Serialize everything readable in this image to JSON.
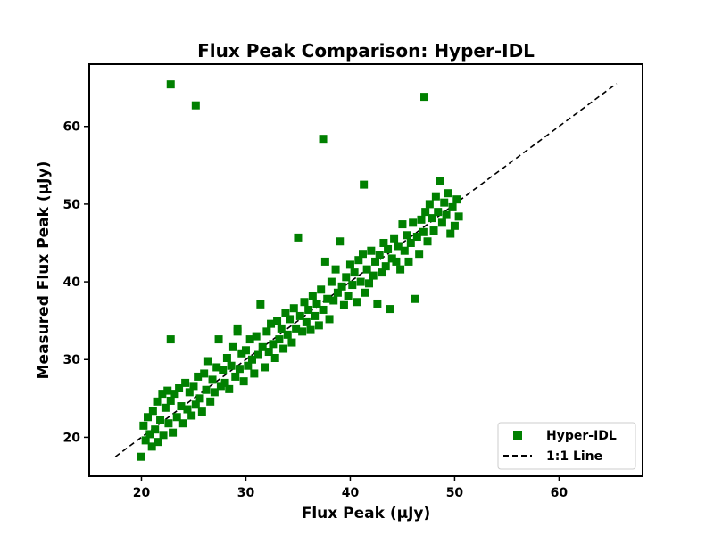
{
  "chart_data": {
    "type": "scatter",
    "title": "Flux Peak Comparison: Hyper-IDL",
    "xlabel": "Flux Peak (μJy)",
    "ylabel": "Measured Flux Peak (μJy)",
    "xlim": [
      15,
      68
    ],
    "ylim": [
      15,
      68
    ],
    "xticks": [
      20,
      30,
      40,
      50,
      60
    ],
    "yticks": [
      20,
      30,
      40,
      50,
      60
    ],
    "grid": false,
    "legend_position": "bottom-right",
    "series": [
      {
        "name": "Hyper-IDL",
        "marker": "square",
        "color": "#008000",
        "points": [
          [
            20.0,
            17.5
          ],
          [
            20.2,
            21.5
          ],
          [
            20.4,
            19.6
          ],
          [
            20.6,
            22.6
          ],
          [
            20.8,
            20.4
          ],
          [
            21.0,
            18.8
          ],
          [
            21.1,
            23.4
          ],
          [
            21.3,
            21.0
          ],
          [
            21.5,
            24.6
          ],
          [
            21.6,
            19.4
          ],
          [
            21.8,
            22.2
          ],
          [
            22.0,
            25.6
          ],
          [
            22.1,
            20.3
          ],
          [
            22.3,
            23.8
          ],
          [
            22.5,
            26.0
          ],
          [
            22.6,
            21.8
          ],
          [
            22.8,
            24.7
          ],
          [
            23.0,
            20.6
          ],
          [
            23.2,
            25.6
          ],
          [
            23.4,
            22.6
          ],
          [
            23.6,
            26.3
          ],
          [
            23.8,
            24.0
          ],
          [
            24.0,
            21.8
          ],
          [
            24.2,
            27.0
          ],
          [
            24.4,
            23.6
          ],
          [
            24.6,
            25.8
          ],
          [
            24.8,
            22.8
          ],
          [
            25.0,
            26.6
          ],
          [
            25.2,
            24.2
          ],
          [
            25.4,
            27.8
          ],
          [
            25.6,
            25.0
          ],
          [
            25.8,
            23.3
          ],
          [
            26.0,
            28.2
          ],
          [
            26.2,
            26.1
          ],
          [
            26.4,
            29.8
          ],
          [
            26.6,
            24.6
          ],
          [
            26.8,
            27.4
          ],
          [
            27.0,
            25.8
          ],
          [
            27.2,
            29.0
          ],
          [
            27.4,
            32.6
          ],
          [
            27.6,
            26.6
          ],
          [
            27.8,
            28.6
          ],
          [
            28.0,
            27.0
          ],
          [
            28.2,
            30.2
          ],
          [
            28.4,
            26.2
          ],
          [
            28.6,
            29.2
          ],
          [
            28.8,
            31.6
          ],
          [
            29.0,
            27.8
          ],
          [
            29.2,
            33.6
          ],
          [
            29.4,
            28.8
          ],
          [
            29.6,
            30.8
          ],
          [
            29.8,
            27.2
          ],
          [
            30.0,
            31.2
          ],
          [
            30.2,
            29.2
          ],
          [
            30.4,
            32.6
          ],
          [
            30.6,
            30.0
          ],
          [
            30.8,
            28.2
          ],
          [
            31.0,
            33.0
          ],
          [
            31.2,
            30.6
          ],
          [
            31.4,
            37.1
          ],
          [
            31.6,
            31.6
          ],
          [
            31.8,
            29.0
          ],
          [
            32.0,
            33.6
          ],
          [
            32.2,
            31.0
          ],
          [
            32.4,
            34.6
          ],
          [
            32.6,
            32.0
          ],
          [
            32.8,
            30.2
          ],
          [
            33.0,
            35.0
          ],
          [
            33.2,
            32.6
          ],
          [
            33.4,
            34.0
          ],
          [
            33.6,
            31.4
          ],
          [
            33.8,
            36.0
          ],
          [
            34.0,
            33.2
          ],
          [
            34.2,
            35.2
          ],
          [
            34.4,
            32.2
          ],
          [
            34.6,
            36.6
          ],
          [
            34.8,
            34.0
          ],
          [
            35.0,
            45.7
          ],
          [
            35.2,
            35.6
          ],
          [
            35.4,
            33.6
          ],
          [
            35.6,
            37.4
          ],
          [
            35.8,
            34.8
          ],
          [
            36.0,
            36.4
          ],
          [
            36.2,
            33.8
          ],
          [
            36.4,
            38.2
          ],
          [
            36.6,
            35.6
          ],
          [
            36.8,
            37.2
          ],
          [
            37.0,
            34.4
          ],
          [
            37.2,
            39.0
          ],
          [
            37.4,
            36.4
          ],
          [
            37.6,
            42.6
          ],
          [
            37.8,
            37.8
          ],
          [
            38.0,
            35.2
          ],
          [
            38.2,
            40.0
          ],
          [
            38.4,
            37.6
          ],
          [
            38.6,
            41.6
          ],
          [
            38.8,
            38.6
          ],
          [
            39.0,
            45.2
          ],
          [
            39.2,
            39.4
          ],
          [
            39.4,
            37.0
          ],
          [
            39.6,
            40.6
          ],
          [
            39.8,
            38.2
          ],
          [
            40.0,
            42.2
          ],
          [
            40.2,
            39.6
          ],
          [
            40.4,
            41.2
          ],
          [
            40.6,
            37.4
          ],
          [
            40.8,
            42.8
          ],
          [
            41.0,
            40.0
          ],
          [
            41.2,
            43.6
          ],
          [
            41.4,
            38.6
          ],
          [
            41.6,
            41.6
          ],
          [
            41.8,
            39.8
          ],
          [
            42.0,
            44.0
          ],
          [
            42.2,
            40.8
          ],
          [
            42.4,
            42.6
          ],
          [
            42.6,
            37.2
          ],
          [
            42.8,
            43.4
          ],
          [
            43.0,
            41.2
          ],
          [
            43.2,
            45.0
          ],
          [
            43.4,
            42.0
          ],
          [
            43.6,
            44.2
          ],
          [
            43.8,
            36.5
          ],
          [
            44.0,
            43.0
          ],
          [
            44.2,
            45.6
          ],
          [
            44.4,
            42.6
          ],
          [
            44.6,
            44.6
          ],
          [
            44.8,
            41.6
          ],
          [
            45.0,
            47.4
          ],
          [
            45.2,
            44.0
          ],
          [
            45.4,
            46.0
          ],
          [
            45.6,
            42.6
          ],
          [
            45.8,
            45.0
          ],
          [
            46.0,
            47.6
          ],
          [
            46.2,
            37.8
          ],
          [
            46.4,
            45.8
          ],
          [
            46.6,
            43.6
          ],
          [
            46.8,
            48.0
          ],
          [
            47.0,
            46.4
          ],
          [
            47.2,
            49.0
          ],
          [
            47.4,
            45.2
          ],
          [
            47.6,
            50.0
          ],
          [
            47.8,
            48.2
          ],
          [
            48.0,
            46.6
          ],
          [
            48.2,
            51.0
          ],
          [
            48.4,
            49.0
          ],
          [
            48.6,
            53.0
          ],
          [
            48.8,
            47.6
          ],
          [
            49.0,
            50.2
          ],
          [
            49.2,
            48.6
          ],
          [
            49.4,
            51.4
          ],
          [
            49.6,
            46.2
          ],
          [
            49.8,
            49.6
          ],
          [
            50.0,
            47.2
          ],
          [
            50.2,
            50.6
          ],
          [
            50.4,
            48.4
          ],
          [
            22.8,
            65.4
          ],
          [
            25.2,
            62.7
          ],
          [
            47.1,
            63.8
          ],
          [
            37.4,
            58.4
          ],
          [
            41.3,
            52.5
          ],
          [
            22.8,
            32.6
          ],
          [
            29.2,
            34.0
          ]
        ]
      },
      {
        "name": "1:1 Line",
        "kind": "line",
        "style": "dashed",
        "color": "#000000",
        "x": [
          17.5,
          65.5
        ],
        "y": [
          17.5,
          65.5
        ]
      }
    ]
  }
}
